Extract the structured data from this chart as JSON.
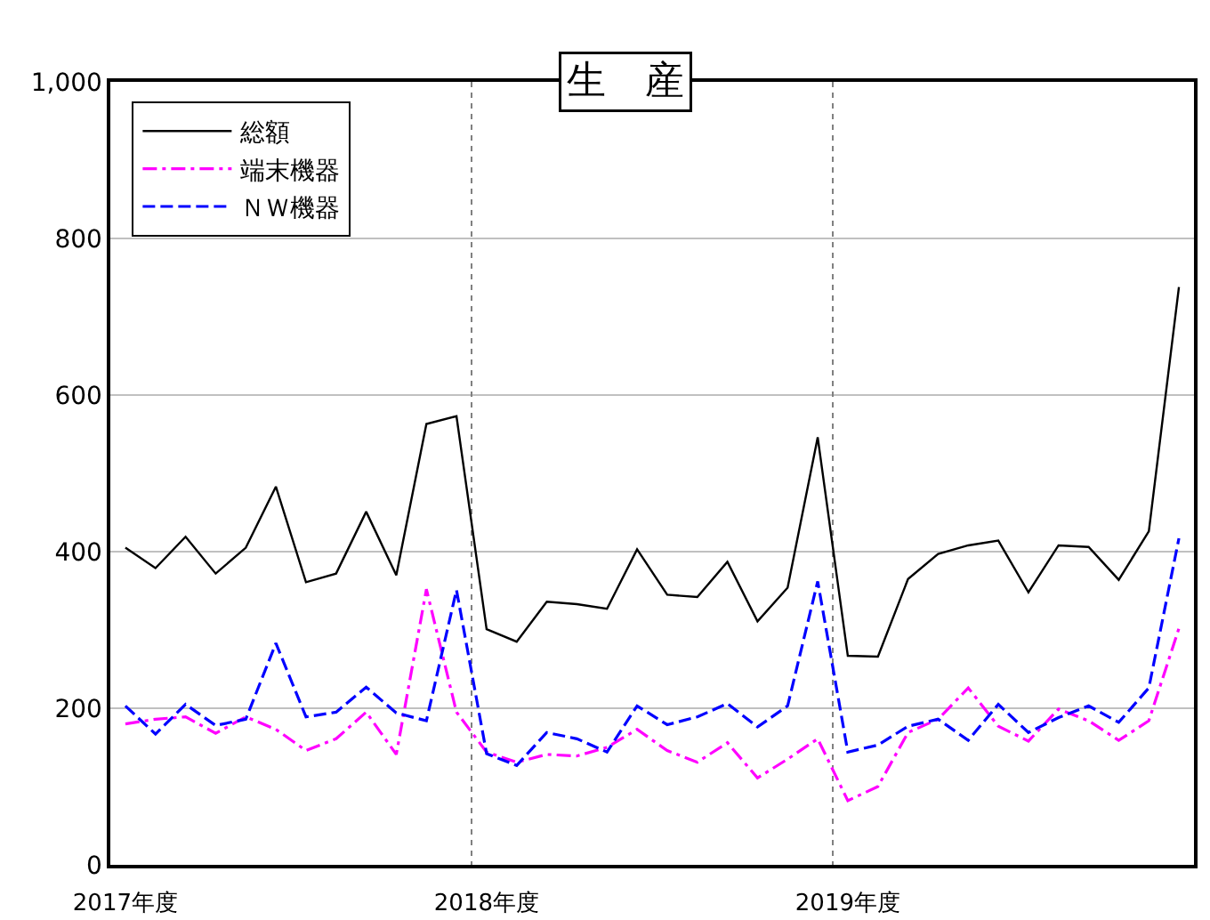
{
  "chart_data": {
    "type": "line",
    "title": "生　産",
    "categories": [
      "2017年度",
      null,
      null,
      null,
      null,
      null,
      null,
      null,
      null,
      null,
      null,
      null,
      "2018年度",
      null,
      null,
      null,
      null,
      null,
      null,
      null,
      null,
      null,
      null,
      null,
      "2019年度",
      null,
      null,
      null,
      null,
      null,
      null,
      null,
      null,
      null,
      null,
      null
    ],
    "series": [
      {
        "name": "総額",
        "color": "#000000",
        "line_style": "solid",
        "values": [
          405,
          379,
          419,
          372,
          405,
          483,
          361,
          372,
          451,
          370,
          563,
          573,
          301,
          285,
          336,
          333,
          327,
          403,
          345,
          342,
          387,
          311,
          354,
          546,
          267,
          266,
          365,
          397,
          408,
          414,
          348,
          408,
          406,
          364,
          426,
          738
        ]
      },
      {
        "name": "端末機器",
        "color": "#ff00ff",
        "line_style": "dashdot",
        "values": [
          180,
          186,
          189,
          168,
          189,
          173,
          146,
          161,
          195,
          141,
          352,
          195,
          144,
          131,
          141,
          139,
          150,
          173,
          146,
          131,
          156,
          111,
          135,
          161,
          82,
          100,
          169,
          186,
          226,
          177,
          158,
          199,
          184,
          159,
          184,
          302
        ]
      },
      {
        "name": "ＮＷ機器",
        "color": "#0000ff",
        "line_style": "dashed",
        "values": [
          203,
          167,
          205,
          178,
          186,
          283,
          189,
          195,
          227,
          194,
          184,
          351,
          142,
          127,
          169,
          161,
          144,
          203,
          179,
          189,
          206,
          176,
          203,
          362,
          144,
          153,
          177,
          186,
          159,
          205,
          169,
          188,
          203,
          182,
          226,
          417
        ]
      }
    ],
    "ylim": [
      0,
      1000
    ],
    "yticks": [
      0,
      200,
      400,
      600,
      800,
      {
        "value": 1000,
        "label": "1,000"
      }
    ],
    "grid": true,
    "legend": "top left"
  }
}
